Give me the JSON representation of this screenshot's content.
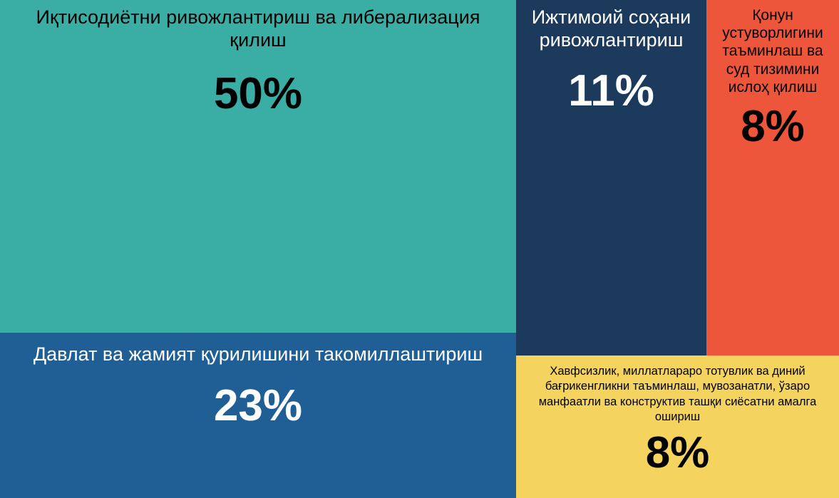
{
  "chart_data": {
    "type": "treemap",
    "title": "",
    "items": [
      {
        "label": "Иқтисодиётни ривожлантириш ва либерализация қилиш",
        "value": 50,
        "value_label": "50%",
        "color": "#3aaea4",
        "text_color": "#000000"
      },
      {
        "label": "Давлат ва жамият қурилишини такомиллаштириш",
        "value": 23,
        "value_label": "23%",
        "color": "#1f5f96",
        "text_color": "#ffffff"
      },
      {
        "label": "Ижтимоий соҳани ривожлантириш",
        "value": 11,
        "value_label": "11%",
        "color": "#1b3a5c",
        "text_color": "#ffffff"
      },
      {
        "label": "Қонун устуворлигини таъминлаш ва суд тизимини ислоҳ қилиш",
        "value": 8,
        "value_label": "8%",
        "color": "#ee563b",
        "text_color": "#000000"
      },
      {
        "label": "Хавфсизлик, миллатлараро тотувлик ва диний бағрикенгликни таъминлаш, мувозанатли, ўзаро манфаатли ва конструктив ташқи сиёсатни амалга ошириш",
        "value": 8,
        "value_label": "8%",
        "color": "#f4d35e",
        "text_color": "#000000"
      }
    ]
  }
}
